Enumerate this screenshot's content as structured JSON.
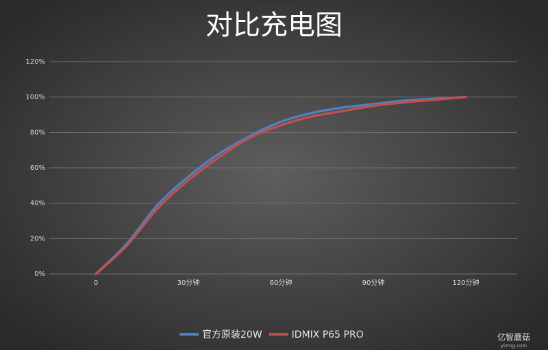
{
  "chart_data": {
    "type": "line",
    "title": "对比充电图",
    "categories": [
      "0",
      null,
      null,
      "30分钟",
      null,
      null,
      "60分钟",
      null,
      null,
      "90分钟",
      null,
      null,
      "120分钟"
    ],
    "series": [
      {
        "name": "官方原装20W",
        "color": "#4f81bd",
        "values": [
          0,
          17,
          39,
          55,
          68,
          78,
          86,
          91,
          94,
          96,
          98,
          99,
          100
        ]
      },
      {
        "name": "IDMIX P65 PRO",
        "color": "#c0504d",
        "values": [
          0,
          16,
          37,
          53,
          66,
          77,
          84,
          89,
          92,
          95,
          97,
          98.5,
          100
        ]
      }
    ],
    "ylim": [
      0,
      120
    ],
    "yticks": [
      {
        "value": 0,
        "label": "0%"
      },
      {
        "value": 20,
        "label": "20%"
      },
      {
        "value": 40,
        "label": "40%"
      },
      {
        "value": 60,
        "label": "60%"
      },
      {
        "value": 80,
        "label": "80%"
      },
      {
        "value": 100,
        "label": "100%"
      },
      {
        "value": 120,
        "label": "120%"
      }
    ],
    "grid": true,
    "legend": "bottom",
    "watermark": {
      "brand": "亿智蘑菇",
      "site": "yizmg.com"
    }
  }
}
